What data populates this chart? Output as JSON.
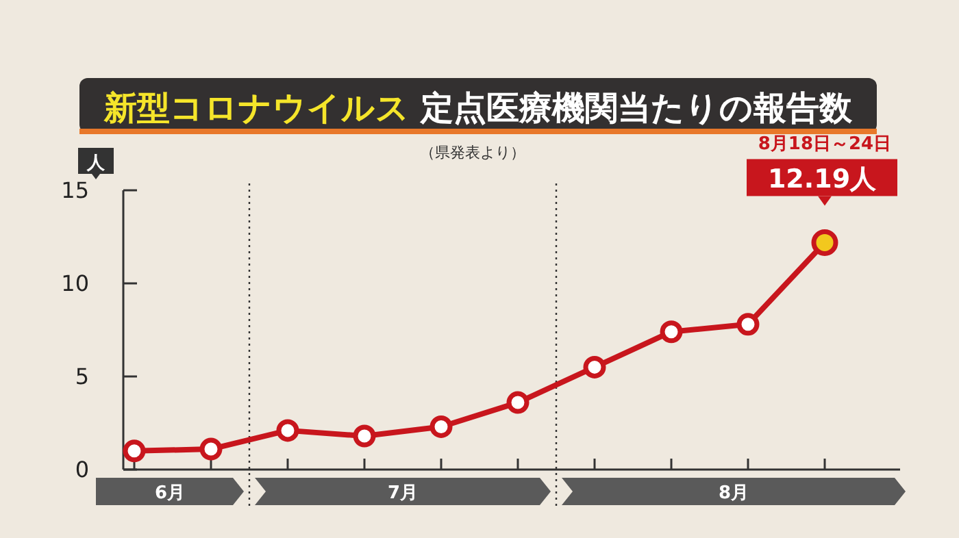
{
  "chart_data": {
    "type": "line",
    "title": "新型コロナウイルス 定点医療機関当たりの報告数",
    "subtitle": "（県発表より）",
    "ylabel": "人",
    "categories": [
      null,
      null,
      null,
      null,
      null,
      null,
      null,
      null,
      null,
      null
    ],
    "ylim": [
      0,
      15
    ],
    "yticks": [
      0,
      5,
      10,
      15
    ],
    "series": [
      {
        "color": "#c8161d",
        "values": [
          1.0,
          1.1,
          2.1,
          1.8,
          2.3,
          3.6,
          5.5,
          7.4,
          7.8,
          12.19
        ]
      }
    ],
    "marker": "circle",
    "line_style": "solid",
    "annotations": [
      "6月",
      "7月",
      "8月",
      "8月18日～24日",
      {
        "text": "12.19人",
        "y": 12.19
      }
    ]
  }
}
